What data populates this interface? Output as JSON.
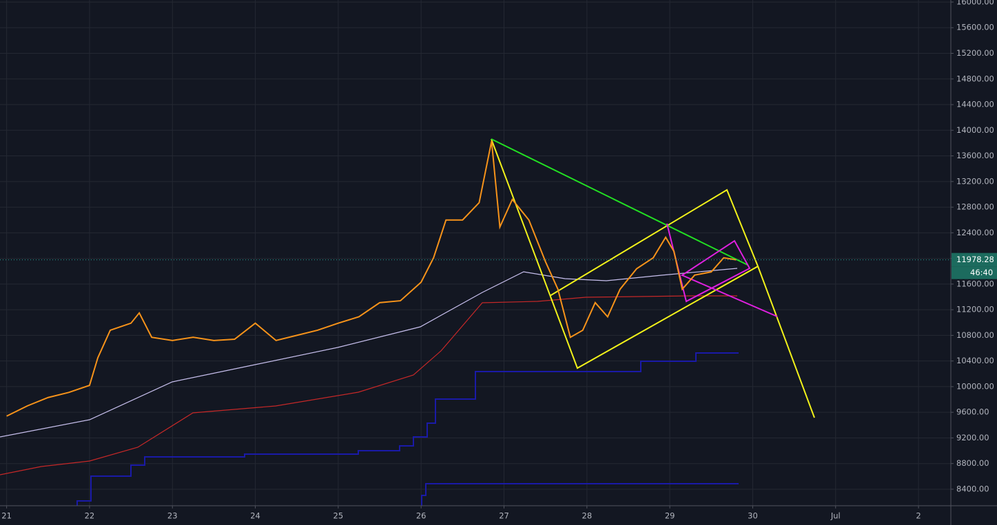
{
  "chart_data": {
    "type": "line",
    "x": [
      21,
      21.25,
      21.5,
      21.75,
      22,
      22.1,
      22.25,
      22.5,
      22.6,
      22.75,
      23,
      23.25,
      23.5,
      23.75,
      24,
      24.25,
      24.5,
      24.75,
      25,
      25.25,
      25.5,
      25.75,
      26,
      26.15,
      26.3,
      26.5,
      26.7,
      26.85,
      26.95,
      27.1,
      27.3,
      27.5,
      27.65,
      27.8,
      27.95,
      28.1,
      28.25,
      28.4,
      28.6,
      28.8,
      28.95,
      29.05,
      29.15,
      29.3,
      29.5,
      29.65,
      29.8
    ],
    "values": [
      9540,
      9700,
      9830,
      9910,
      10020,
      10450,
      10880,
      10990,
      11150,
      10770,
      10720,
      10770,
      10720,
      10740,
      10990,
      10720,
      10800,
      10880,
      10990,
      11090,
      11310,
      11340,
      11630,
      12010,
      12600,
      12600,
      12870,
      13830,
      12490,
      12920,
      12600,
      11950,
      11520,
      10770,
      10880,
      11310,
      11090,
      11520,
      11840,
      12010,
      12330,
      12110,
      11520,
      11740,
      11790,
      12010,
      11978.28
    ],
    "color": "#f7931a",
    "last_price": {
      "value": 11978.28,
      "label": "11978.28"
    },
    "countdown": "46:40",
    "xlim": [
      20.92,
      32.39
    ],
    "xticks": [
      21,
      22,
      23,
      24,
      25,
      26,
      27,
      28,
      29,
      30,
      {
        "value": 31,
        "label": "Jul"
      },
      {
        "value": 32,
        "label": "2"
      }
    ],
    "ylim": [
      8142,
      16032
    ],
    "yticks": [
      {
        "value": 8400,
        "label": "8400.00"
      },
      {
        "value": 8800,
        "label": "8800.00"
      },
      {
        "value": 9200,
        "label": "9200.00"
      },
      {
        "value": 9600,
        "label": "9600.00"
      },
      {
        "value": 10000,
        "label": "10000.00"
      },
      {
        "value": 10400,
        "label": "10400.00"
      },
      {
        "value": 10800,
        "label": "10800.00"
      },
      {
        "value": 11200,
        "label": "11200.00"
      },
      {
        "value": 11600,
        "label": "11600.00"
      },
      {
        "value": 12000,
        "label": "12000.00"
      },
      {
        "value": 12400,
        "label": "12400.00"
      },
      {
        "value": 12800,
        "label": "12800.00"
      },
      {
        "value": 13200,
        "label": "13200.00"
      },
      {
        "value": 13600,
        "label": "13600.00"
      },
      {
        "value": 14000,
        "label": "14000.00"
      },
      {
        "value": 14400,
        "label": "14400.00"
      },
      {
        "value": 14800,
        "label": "14800.00"
      },
      {
        "value": 15200,
        "label": "15200.00"
      },
      {
        "value": 15600,
        "label": "15600.00"
      },
      {
        "value": 16000,
        "label": "16000.00"
      }
    ],
    "grid": true
  }
}
